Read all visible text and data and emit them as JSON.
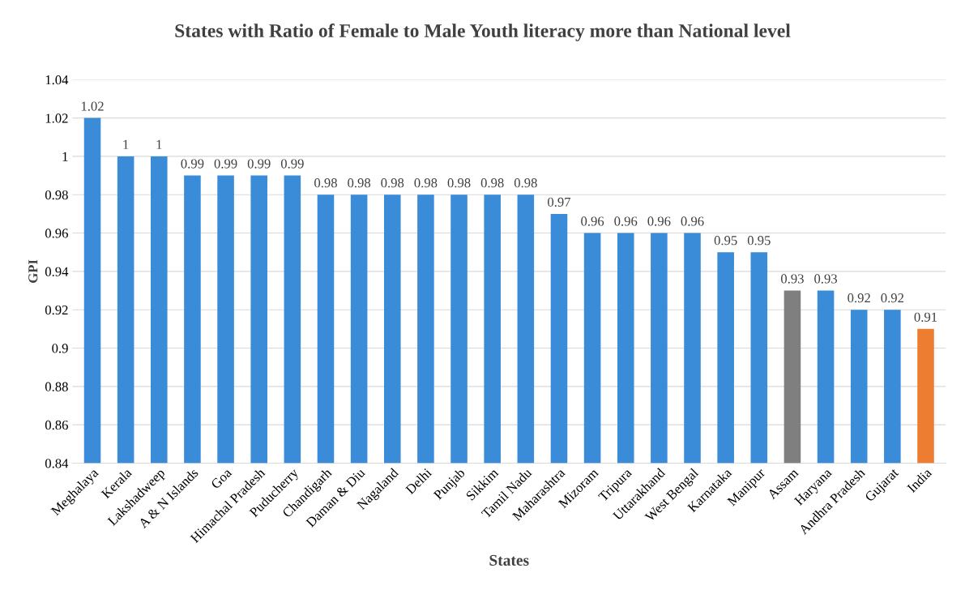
{
  "chart_data": {
    "type": "bar",
    "title": "States with Ratio of Female to Male Youth literacy more than National level",
    "xlabel": "States",
    "ylabel": "GPI",
    "categories": [
      "Meghalaya",
      "Kerala",
      "Lakshadweep",
      "A & N Islands",
      "Goa",
      "Himachal Pradesh",
      "Puducherry",
      "Chandigarh",
      "Daman & Diu",
      "Nagaland",
      "Delhi",
      "Punjab",
      "Sikkim",
      "Tamil Nadu",
      "Maharashtra",
      "Mizoram",
      "Tripura",
      "Uttarakhand",
      "West Bengal",
      "Karnataka",
      "Manipur",
      "Assam",
      "Haryana",
      "Andhra Pradesh",
      "Gujarat",
      "India"
    ],
    "values": [
      1.02,
      1,
      1,
      0.99,
      0.99,
      0.99,
      0.99,
      0.98,
      0.98,
      0.98,
      0.98,
      0.98,
      0.98,
      0.98,
      0.97,
      0.96,
      0.96,
      0.96,
      0.96,
      0.95,
      0.95,
      0.93,
      0.93,
      0.92,
      0.92,
      0.91
    ],
    "colors": [
      "#3a8bd8",
      "#3a8bd8",
      "#3a8bd8",
      "#3a8bd8",
      "#3a8bd8",
      "#3a8bd8",
      "#3a8bd8",
      "#3a8bd8",
      "#3a8bd8",
      "#3a8bd8",
      "#3a8bd8",
      "#3a8bd8",
      "#3a8bd8",
      "#3a8bd8",
      "#3a8bd8",
      "#3a8bd8",
      "#3a8bd8",
      "#3a8bd8",
      "#3a8bd8",
      "#3a8bd8",
      "#3a8bd8",
      "#7f7f7f",
      "#3a8bd8",
      "#3a8bd8",
      "#3a8bd8",
      "#ed7d31"
    ],
    "ylim": [
      0.84,
      1.04
    ],
    "yticks": [
      0.84,
      0.86,
      0.88,
      0.9,
      0.92,
      0.94,
      0.96,
      0.98,
      1,
      1.02,
      1.04
    ],
    "grid": "y",
    "data_labels": true
  }
}
